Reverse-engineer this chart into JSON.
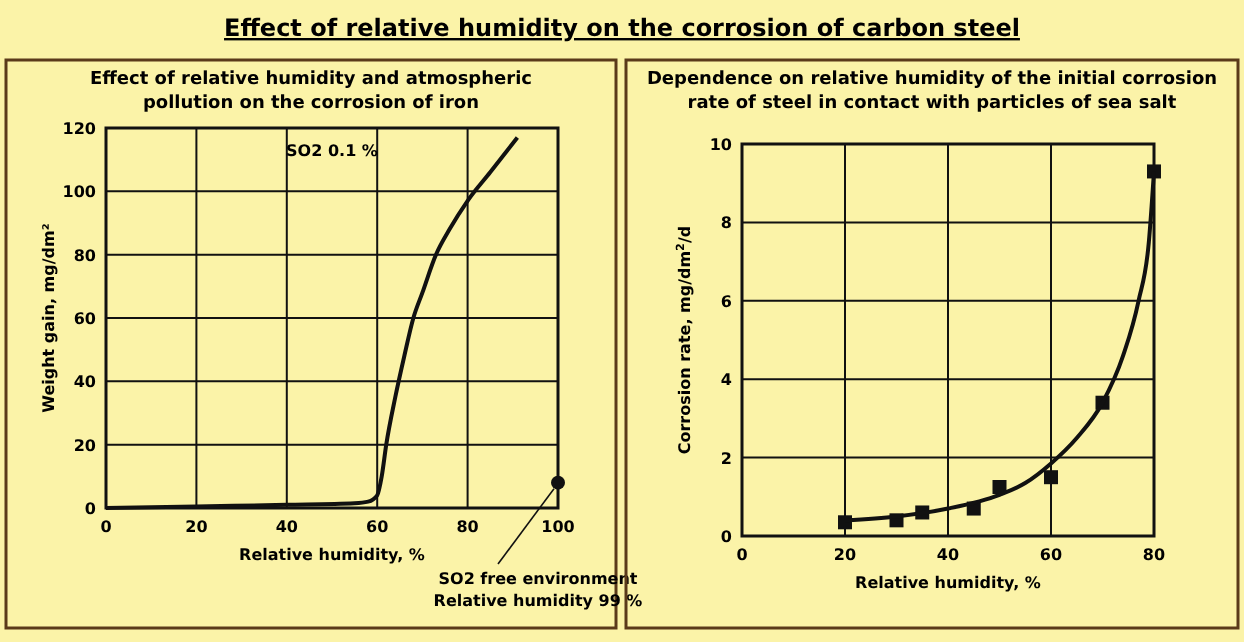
{
  "chart_data": [
    {
      "type": "line",
      "title": "Effect of relative humidity on the corrosion of carbon steel",
      "subtitle": "Effect of relative humidity and atmospheric\npollution on the corrosion of iron",
      "xlabel": "Relative humidity, %",
      "ylabel": "Weight gain, mg/dm²",
      "xlim": [
        0,
        100
      ],
      "ylim": [
        0,
        120
      ],
      "xticks": [
        0,
        20,
        40,
        60,
        80,
        100
      ],
      "yticks": [
        0,
        20,
        40,
        60,
        80,
        100,
        120
      ],
      "grid": true,
      "series": [
        {
          "color": "#111111",
          "line_style": "solid",
          "marker": "none",
          "x": [
            0,
            20,
            40,
            55,
            58,
            60,
            61,
            62,
            64,
            66,
            68,
            70,
            73,
            76,
            80,
            85,
            91
          ],
          "values": [
            0,
            0.5,
            1,
            1.5,
            2,
            4,
            10,
            20,
            35,
            48,
            60,
            68,
            80,
            88,
            97,
            106,
            117
          ]
        },
        {
          "type": "scatter",
          "color": "#111111",
          "marker": "circle",
          "x": [
            100
          ],
          "values": [
            8
          ]
        }
      ],
      "annotations": [
        "SO2 0.1 %",
        {
          "text": "SO2 free environment\nRelative humidity 99 %",
          "x": 100,
          "y": 8
        }
      ]
    },
    {
      "type": "scatter",
      "title": "Dependence on relative humidity of the initial corrosion\nrate of steel in contact with particles of sea salt",
      "xlabel": "Relative humidity, %",
      "ylabel": "Corrosion rate, mg/dm$^{2}$/d",
      "xlim": [
        0,
        80
      ],
      "ylim": [
        0,
        10
      ],
      "xticks": [
        0,
        20,
        40,
        60,
        80
      ],
      "yticks": [
        0,
        2,
        4,
        6,
        8,
        10
      ],
      "grid": true,
      "series": [
        {
          "color": "#111111",
          "marker": "square",
          "x": [
            20,
            30,
            35,
            45,
            50,
            60,
            70,
            80
          ],
          "values": [
            0.35,
            0.4,
            0.6,
            0.7,
            1.25,
            1.5,
            3.4,
            9.3
          ]
        },
        {
          "type": "line",
          "color": "#111111",
          "line_style": "solid",
          "marker": "none",
          "x": [
            20,
            30,
            40,
            50,
            55,
            60,
            65,
            70,
            74,
            77,
            79,
            80
          ],
          "values": [
            0.4,
            0.5,
            0.7,
            1.05,
            1.35,
            1.85,
            2.5,
            3.4,
            4.6,
            6,
            7.5,
            9.3
          ]
        }
      ]
    }
  ]
}
